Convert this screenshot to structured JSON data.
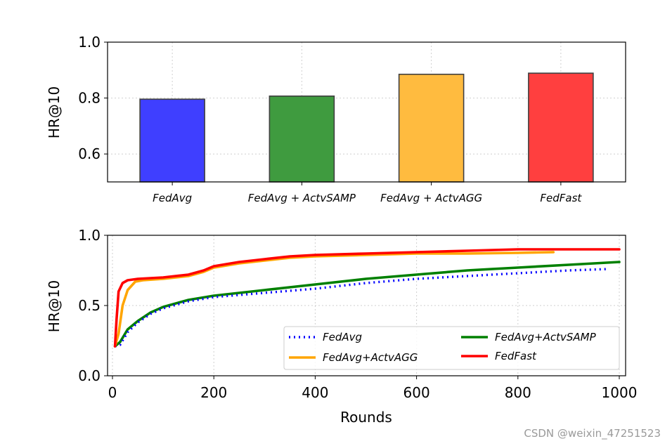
{
  "chart_data": [
    {
      "type": "bar",
      "title": "",
      "xlabel": "",
      "ylabel": "HR@10",
      "ylim": [
        0.5,
        1.0
      ],
      "yticks": [
        "0.6",
        "0.8",
        "1.0"
      ],
      "categories": [
        "FedAvg",
        "FedAvg + ActvSAMP",
        "FedAvg + ActvAGG",
        "FedFast"
      ],
      "values": [
        0.796,
        0.807,
        0.885,
        0.889
      ],
      "colors": [
        "#3f3fff",
        "#3f9b3f",
        "#ffbb3f",
        "#ff3f3f"
      ],
      "grid": true
    },
    {
      "type": "line",
      "title": "",
      "xlabel": "Rounds",
      "ylabel": "HR@10",
      "xlim": [
        0,
        1000
      ],
      "ylim": [
        0.0,
        1.0
      ],
      "xticks": [
        "0",
        "200",
        "400",
        "600",
        "800",
        "1000"
      ],
      "yticks": [
        "0.0",
        "0.5",
        "1.0"
      ],
      "grid": true,
      "legend_position": "lower-right",
      "series": [
        {
          "name": "FedAvg",
          "color": "#0000ff",
          "style": "dotted",
          "x": [
            5,
            15,
            30,
            50,
            75,
            100,
            150,
            200,
            300,
            400,
            500,
            600,
            700,
            800,
            900,
            980
          ],
          "y": [
            0.21,
            0.22,
            0.31,
            0.38,
            0.44,
            0.48,
            0.53,
            0.56,
            0.59,
            0.62,
            0.66,
            0.69,
            0.71,
            0.73,
            0.75,
            0.76
          ]
        },
        {
          "name": "FedAvg+ActvAGG",
          "color": "#ffa500",
          "style": "solid",
          "x": [
            5,
            12,
            20,
            30,
            45,
            60,
            100,
            150,
            180,
            200,
            250,
            300,
            350,
            400,
            500,
            600,
            700,
            800,
            870
          ],
          "y": [
            0.21,
            0.3,
            0.5,
            0.61,
            0.67,
            0.68,
            0.69,
            0.71,
            0.74,
            0.77,
            0.8,
            0.82,
            0.84,
            0.85,
            0.86,
            0.87,
            0.87,
            0.875,
            0.88
          ]
        },
        {
          "name": "FedAvg+ActvSAMP",
          "color": "#008000",
          "style": "solid",
          "x": [
            5,
            15,
            30,
            50,
            75,
            100,
            150,
            200,
            300,
            400,
            500,
            600,
            700,
            800,
            900,
            1000
          ],
          "y": [
            0.21,
            0.24,
            0.33,
            0.39,
            0.45,
            0.49,
            0.54,
            0.57,
            0.61,
            0.65,
            0.69,
            0.72,
            0.75,
            0.77,
            0.79,
            0.81
          ]
        },
        {
          "name": "FedFast",
          "color": "#ff0000",
          "style": "solid",
          "x": [
            5,
            8,
            12,
            20,
            30,
            50,
            100,
            150,
            180,
            200,
            250,
            300,
            350,
            400,
            500,
            600,
            700,
            800,
            900,
            1000
          ],
          "y": [
            0.21,
            0.4,
            0.6,
            0.66,
            0.68,
            0.69,
            0.7,
            0.72,
            0.75,
            0.78,
            0.81,
            0.83,
            0.85,
            0.86,
            0.87,
            0.88,
            0.89,
            0.9,
            0.9,
            0.9
          ]
        }
      ]
    }
  ],
  "watermark": "CSDN @weixin_47251523"
}
